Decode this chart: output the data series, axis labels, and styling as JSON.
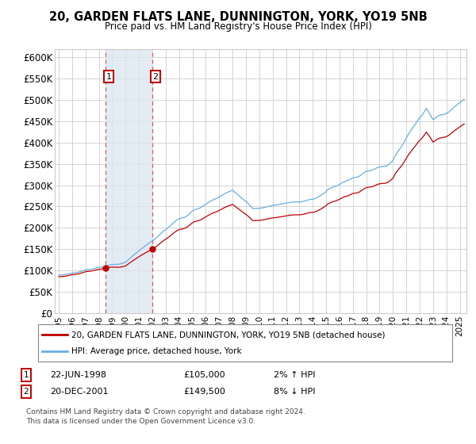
{
  "title": "20, GARDEN FLATS LANE, DUNNINGTON, YORK, YO19 5NB",
  "subtitle": "Price paid vs. HM Land Registry's House Price Index (HPI)",
  "ylim": [
    0,
    620000
  ],
  "yticks": [
    0,
    50000,
    100000,
    150000,
    200000,
    250000,
    300000,
    350000,
    400000,
    450000,
    500000,
    550000,
    600000
  ],
  "ytick_labels": [
    "£0",
    "£50K",
    "£100K",
    "£150K",
    "£200K",
    "£250K",
    "£300K",
    "£350K",
    "£400K",
    "£450K",
    "£500K",
    "£550K",
    "£600K"
  ],
  "xlim_start": 1994.7,
  "xlim_end": 2025.5,
  "sale1_date": 1998.47,
  "sale1_price": 105000,
  "sale2_date": 2001.97,
  "sale2_price": 149500,
  "legend_line1": "20, GARDEN FLATS LANE, DUNNINGTON, YORK, YO19 5NB (detached house)",
  "legend_line2": "HPI: Average price, detached house, York",
  "footer1": "Contains HM Land Registry data © Crown copyright and database right 2024.",
  "footer2": "This data is licensed under the Open Government Licence v3.0.",
  "hpi_color": "#6aaee0",
  "price_color": "#c00000",
  "background_color": "#ffffff",
  "grid_color": "#cccccc",
  "shade_color": "#dce6f1",
  "vline_color": "#d06060"
}
